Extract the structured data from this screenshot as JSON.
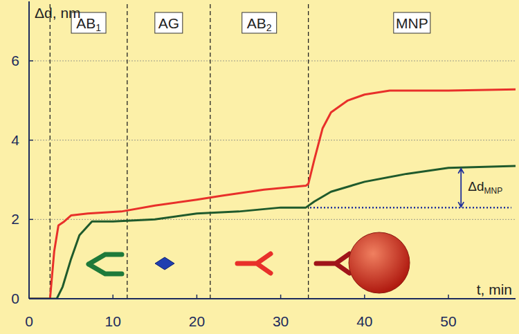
{
  "chart_data": {
    "type": "line",
    "x_label": "t, min",
    "y_label": "Δd, nm",
    "xlim": [
      0,
      58
    ],
    "ylim": [
      0,
      7.5
    ],
    "xticks": [
      0,
      10,
      20,
      30,
      40,
      50
    ],
    "yticks": [
      0,
      2,
      4,
      6
    ],
    "grid": true,
    "phases": [
      {
        "label": "AB",
        "subscript": "1",
        "start": 2.5
      },
      {
        "label": "AG",
        "start": 11.7
      },
      {
        "label": "AB",
        "subscript": "2",
        "start": 21.6
      },
      {
        "label": "MNP",
        "start": 33.3
      }
    ],
    "series": [
      {
        "color": "#e8302a",
        "x": [
          0,
          2.5,
          3.0,
          3.5,
          4.2,
          5,
          7,
          11,
          15,
          20,
          23,
          28,
          33,
          33.3,
          34,
          35,
          36,
          38,
          40,
          43,
          50,
          58
        ],
        "values": [
          0,
          0,
          1.2,
          1.85,
          1.95,
          2.1,
          2.15,
          2.2,
          2.35,
          2.5,
          2.6,
          2.75,
          2.85,
          2.9,
          3.5,
          4.3,
          4.7,
          5.0,
          5.15,
          5.25,
          5.25,
          5.28
        ]
      },
      {
        "color": "#1f5a2c",
        "x": [
          0,
          3.3,
          4,
          5,
          6,
          7.5,
          10,
          15,
          20,
          25,
          30,
          33,
          34,
          36,
          40,
          45,
          50,
          58
        ],
        "values": [
          0,
          0,
          0.3,
          1.0,
          1.6,
          1.95,
          1.95,
          2.0,
          2.15,
          2.2,
          2.3,
          2.3,
          2.45,
          2.7,
          2.95,
          3.15,
          3.3,
          3.35
        ]
      }
    ],
    "annotations": [
      {
        "text": "Δd",
        "subscript": "MNP",
        "x": 51.5,
        "x_from": 33.5,
        "x_to": 57.5,
        "y_from": 2.3,
        "y_to": 3.3
      }
    ]
  }
}
